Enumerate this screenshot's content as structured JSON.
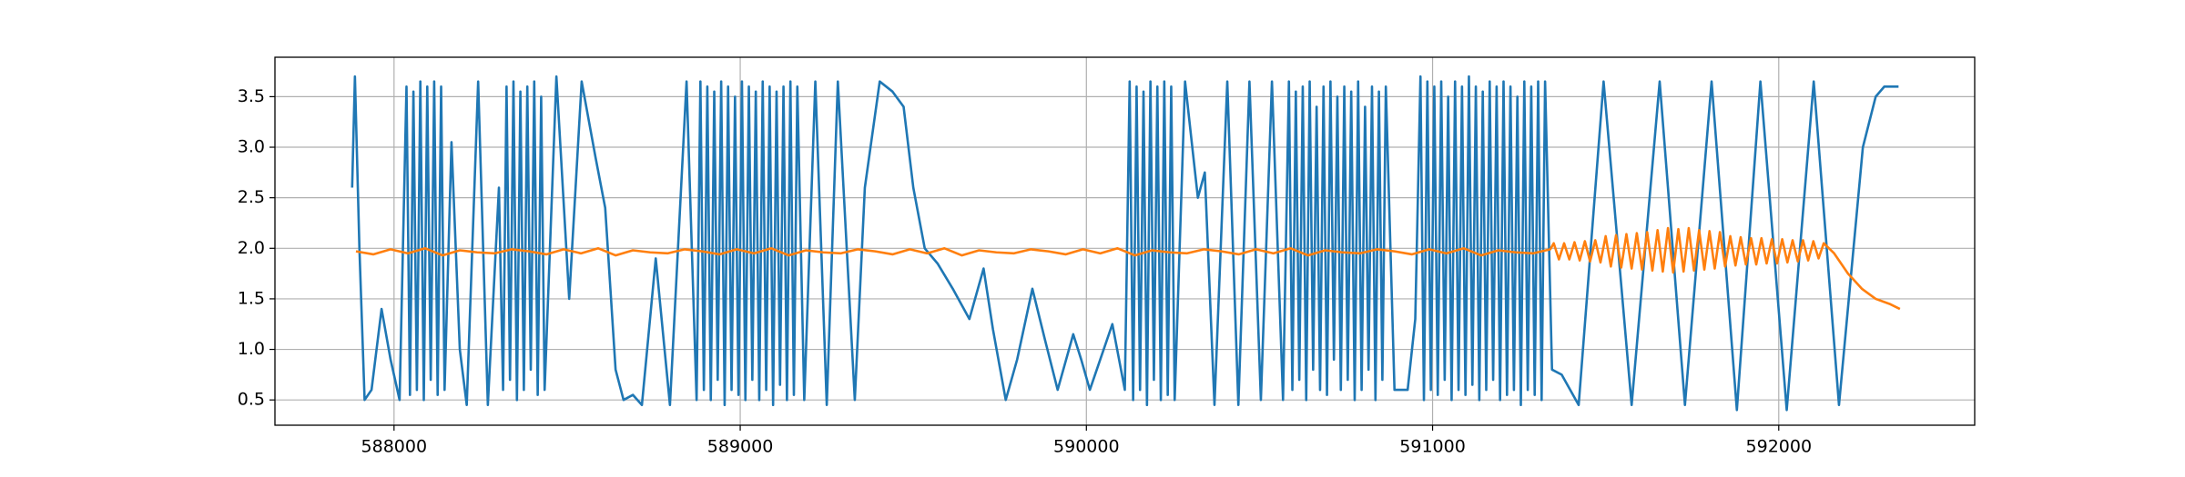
{
  "chart_data": {
    "type": "line",
    "xlim": [
      587656,
      592566
    ],
    "ylim": [
      0.25,
      3.89
    ],
    "xticks": [
      588000,
      589000,
      590000,
      591000,
      592000
    ],
    "yticks": [
      0.5,
      {
        "value": 1,
        "label": "1.0"
      },
      1.5,
      {
        "value": 2,
        "label": "2.0"
      },
      2.5,
      {
        "value": 3,
        "label": "3.0"
      },
      3.5
    ],
    "grid": true,
    "series": [
      {
        "color": "#1f77b4",
        "x": [
          587879,
          587887,
          587900,
          587915,
          587935,
          587964,
          587990,
          588016,
          588036,
          588046,
          588056,
          588066,
          588076,
          588086,
          588096,
          588106,
          588116,
          588126,
          588136,
          588146,
          588166,
          588190,
          588210,
          588243,
          588271,
          588303,
          588315,
          588325,
          588335,
          588345,
          588355,
          588365,
          588375,
          588385,
          588395,
          588405,
          588415,
          588425,
          588435,
          588469,
          588506,
          588542,
          588582,
          588610,
          588640,
          588663,
          588690,
          588716,
          588756,
          588797,
          588845,
          588874,
          588885,
          588895,
          588905,
          588915,
          588925,
          588935,
          588945,
          588955,
          588965,
          588975,
          588985,
          588995,
          589005,
          589015,
          589025,
          589035,
          589045,
          589055,
          589065,
          589075,
          589085,
          589095,
          589105,
          589115,
          589125,
          589135,
          589145,
          589155,
          589165,
          589185,
          589217,
          589250,
          589282,
          589331,
          589360,
          589403,
          589440,
          589472,
          589500,
          589533,
          589570,
          589614,
          589662,
          589703,
          589730,
          589767,
          589800,
          589844,
          589880,
          589917,
          589962,
          589985,
          590010,
          590075,
          590111,
          590125,
          590135,
          590145,
          590155,
          590165,
          590175,
          590185,
          590195,
          590205,
          590215,
          590225,
          590235,
          590245,
          590255,
          590285,
          590322,
          590342,
          590370,
          590407,
          590439,
          590471,
          590504,
          590536,
          590568,
          590585,
          590595,
          590605,
          590615,
          590625,
          590635,
          590645,
          590655,
          590665,
          590675,
          590685,
          590695,
          590705,
          590715,
          590725,
          590735,
          590745,
          590755,
          590765,
          590775,
          590785,
          590795,
          590805,
          590815,
          590825,
          590835,
          590845,
          590855,
          590865,
          590890,
          590928,
          590950,
          590965,
          590975,
          590985,
          590995,
          591005,
          591015,
          591025,
          591035,
          591045,
          591055,
          591065,
          591075,
          591085,
          591095,
          591105,
          591115,
          591125,
          591135,
          591145,
          591155,
          591165,
          591175,
          591185,
          591195,
          591205,
          591215,
          591225,
          591235,
          591245,
          591255,
          591265,
          591275,
          591285,
          591295,
          591305,
          591315,
          591325,
          591345,
          591373,
          591422,
          591494,
          591575,
          591656,
          591729,
          591806,
          591879,
          591947,
          592023,
          592101,
          592174,
          592243,
          592280,
          592305,
          592346
        ],
        "values": [
          2.6,
          3.7,
          2.0,
          0.5,
          0.6,
          1.4,
          0.9,
          0.5,
          3.6,
          0.55,
          3.55,
          0.6,
          3.65,
          0.5,
          3.6,
          0.7,
          3.65,
          0.55,
          3.6,
          0.6,
          3.05,
          1.0,
          0.45,
          3.65,
          0.45,
          2.6,
          0.6,
          3.6,
          0.7,
          3.65,
          0.5,
          3.55,
          0.6,
          3.6,
          0.8,
          3.65,
          0.55,
          3.5,
          0.6,
          3.7,
          1.5,
          3.65,
          2.9,
          2.4,
          0.8,
          0.5,
          0.55,
          0.45,
          1.9,
          0.45,
          3.65,
          0.5,
          3.65,
          0.6,
          3.6,
          0.5,
          3.55,
          0.7,
          3.65,
          0.45,
          3.6,
          0.6,
          3.5,
          0.55,
          3.65,
          0.5,
          3.6,
          0.7,
          3.55,
          0.5,
          3.65,
          0.6,
          3.6,
          0.45,
          3.55,
          0.65,
          3.6,
          0.5,
          3.65,
          0.55,
          3.6,
          0.5,
          3.65,
          0.45,
          3.65,
          0.5,
          2.6,
          3.65,
          3.55,
          3.4,
          2.6,
          2.0,
          1.85,
          1.6,
          1.3,
          1.8,
          1.2,
          0.5,
          0.9,
          1.6,
          1.1,
          0.6,
          1.15,
          0.9,
          0.6,
          1.25,
          0.6,
          3.65,
          0.5,
          3.6,
          0.6,
          3.55,
          0.45,
          3.65,
          0.7,
          3.6,
          0.5,
          3.65,
          0.55,
          3.6,
          0.5,
          3.65,
          2.5,
          2.75,
          0.45,
          3.65,
          0.45,
          3.65,
          0.5,
          3.65,
          0.5,
          3.65,
          0.6,
          3.55,
          0.7,
          3.6,
          0.5,
          3.65,
          0.8,
          3.4,
          0.6,
          3.6,
          0.55,
          3.65,
          0.9,
          3.5,
          0.6,
          3.6,
          0.7,
          3.55,
          0.5,
          3.65,
          0.6,
          3.4,
          0.8,
          3.6,
          0.5,
          3.55,
          0.7,
          3.6,
          0.6,
          0.6,
          1.3,
          3.7,
          0.5,
          3.65,
          0.6,
          3.6,
          0.55,
          3.65,
          0.7,
          3.5,
          0.5,
          3.65,
          0.6,
          3.6,
          0.55,
          3.7,
          0.65,
          3.6,
          0.5,
          3.55,
          0.6,
          3.65,
          0.7,
          3.6,
          0.5,
          3.65,
          0.55,
          3.6,
          0.6,
          3.5,
          0.45,
          3.65,
          0.6,
          3.6,
          0.55,
          3.65,
          0.5,
          3.65,
          0.8,
          0.75,
          0.45,
          3.65,
          0.45,
          3.65,
          0.45,
          3.65,
          0.4,
          3.65,
          0.4,
          3.65,
          0.45,
          3.0,
          3.5,
          3.6,
          3.6
        ]
      },
      {
        "color": "#ff7f0e",
        "x": [
          587890,
          587940,
          587990,
          588040,
          588090,
          588140,
          588190,
          588240,
          588290,
          588340,
          588390,
          588440,
          588490,
          588540,
          588590,
          588640,
          588690,
          588740,
          588790,
          588840,
          588890,
          588940,
          588990,
          589040,
          589090,
          589140,
          589190,
          589240,
          589290,
          589340,
          589390,
          589440,
          589490,
          589540,
          589590,
          589640,
          589690,
          589740,
          589790,
          589840,
          589890,
          589940,
          589990,
          590040,
          590090,
          590140,
          590190,
          590240,
          590290,
          590340,
          590390,
          590440,
          590490,
          590540,
          590590,
          590640,
          590690,
          590740,
          590790,
          590840,
          590890,
          590940,
          590990,
          591040,
          591090,
          591140,
          591190,
          591240,
          591290,
          591340,
          591350,
          591365,
          591380,
          591395,
          591410,
          591425,
          591440,
          591455,
          591470,
          591485,
          591500,
          591515,
          591530,
          591545,
          591560,
          591575,
          591590,
          591605,
          591620,
          591635,
          591650,
          591665,
          591680,
          591695,
          591710,
          591725,
          591740,
          591755,
          591770,
          591785,
          591800,
          591815,
          591830,
          591845,
          591860,
          591875,
          591890,
          591905,
          591920,
          591935,
          591950,
          591965,
          591980,
          591995,
          592010,
          592025,
          592040,
          592055,
          592070,
          592085,
          592100,
          592115,
          592130,
          592160,
          592200,
          592240,
          592280,
          592320,
          592350
        ],
        "values": [
          1.97,
          1.94,
          1.99,
          1.95,
          2.0,
          1.93,
          1.98,
          1.96,
          1.95,
          1.99,
          1.97,
          1.94,
          1.99,
          1.95,
          2.0,
          1.93,
          1.98,
          1.96,
          1.95,
          1.99,
          1.97,
          1.94,
          1.99,
          1.95,
          2.0,
          1.93,
          1.98,
          1.96,
          1.95,
          1.99,
          1.97,
          1.94,
          1.99,
          1.95,
          2.0,
          1.93,
          1.98,
          1.96,
          1.95,
          1.99,
          1.97,
          1.94,
          1.99,
          1.95,
          2.0,
          1.93,
          1.98,
          1.96,
          1.95,
          1.99,
          1.97,
          1.94,
          1.99,
          1.95,
          2.0,
          1.93,
          1.98,
          1.96,
          1.95,
          1.99,
          1.97,
          1.94,
          1.99,
          1.95,
          2.0,
          1.93,
          1.98,
          1.96,
          1.95,
          1.99,
          2.05,
          1.89,
          2.05,
          1.89,
          2.06,
          1.88,
          2.07,
          1.87,
          2.08,
          1.86,
          2.12,
          1.82,
          2.13,
          1.81,
          2.14,
          1.8,
          2.15,
          1.79,
          2.16,
          1.78,
          2.18,
          1.77,
          2.2,
          1.76,
          2.19,
          1.77,
          2.2,
          1.78,
          2.18,
          1.79,
          2.17,
          1.8,
          2.16,
          1.82,
          2.12,
          1.83,
          2.11,
          1.84,
          2.1,
          1.84,
          2.1,
          1.85,
          2.09,
          1.85,
          2.09,
          1.86,
          2.08,
          1.87,
          2.08,
          1.88,
          2.07,
          1.9,
          2.05,
          1.95,
          1.75,
          1.6,
          1.5,
          1.45,
          1.4
        ]
      }
    ]
  }
}
